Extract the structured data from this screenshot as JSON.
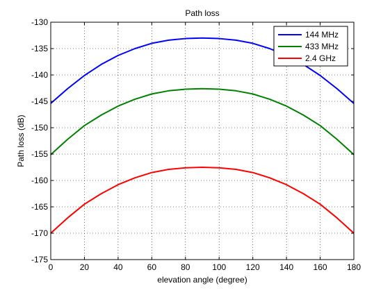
{
  "chart_data": {
    "type": "line",
    "title": "Path loss",
    "xlabel": "elevation angle (degree)",
    "ylabel": "Path loss (dB)",
    "xlim": [
      0,
      180
    ],
    "ylim": [
      -175,
      -130
    ],
    "x_ticks": [
      0,
      20,
      40,
      60,
      80,
      100,
      120,
      140,
      160,
      180
    ],
    "y_ticks": [
      -130,
      -135,
      -140,
      -145,
      -150,
      -155,
      -160,
      -165,
      -170,
      -175
    ],
    "grid": true,
    "legend_position": "top-right",
    "x": [
      0,
      10,
      20,
      30,
      40,
      50,
      60,
      70,
      80,
      90,
      100,
      110,
      120,
      130,
      140,
      150,
      160,
      170,
      180
    ],
    "series": [
      {
        "name": "144 MHz",
        "color": "#0000ff",
        "values": [
          -145.4,
          -142.6,
          -140.1,
          -138.0,
          -136.3,
          -135.0,
          -134.0,
          -133.4,
          -133.1,
          -133.0,
          -133.1,
          -133.4,
          -134.0,
          -135.0,
          -136.3,
          -138.0,
          -140.1,
          -142.6,
          -145.4
        ]
      },
      {
        "name": "433 MHz",
        "color": "#008000",
        "values": [
          -155.1,
          -152.2,
          -149.6,
          -147.6,
          -145.9,
          -144.6,
          -143.6,
          -143.0,
          -142.7,
          -142.6,
          -142.7,
          -143.0,
          -143.6,
          -144.6,
          -145.9,
          -147.6,
          -149.6,
          -152.2,
          -155.1
        ]
      },
      {
        "name": "2.4 GHz",
        "color": "#ff0000",
        "values": [
          -170.0,
          -167.1,
          -164.5,
          -162.5,
          -160.8,
          -159.5,
          -158.5,
          -157.9,
          -157.6,
          -157.5,
          -157.6,
          -157.9,
          -158.5,
          -159.5,
          -160.8,
          -162.5,
          -164.5,
          -167.1,
          -170.0
        ]
      }
    ]
  }
}
